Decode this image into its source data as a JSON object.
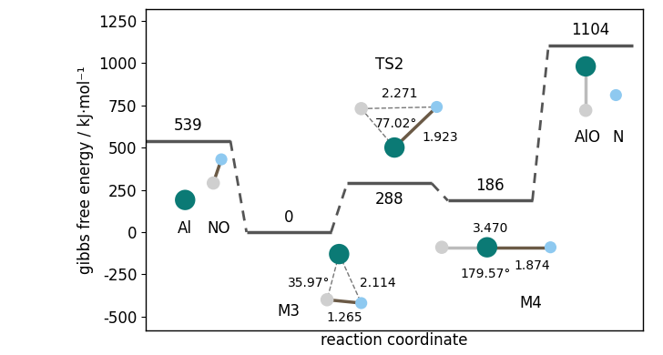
{
  "chart_data": {
    "type": "energy_profile",
    "ylabel": "gibbs free energy / kJ·mol⁻¹",
    "xlabel": "reaction coordinate",
    "ylim": [
      -580,
      1320
    ],
    "yticks": [
      -500,
      -250,
      0,
      250,
      500,
      750,
      1000,
      1250
    ],
    "data_labels": true,
    "color": "#555555",
    "states": [
      {
        "labels": [
          "Al",
          "NO"
        ],
        "value": 539,
        "geometry": []
      },
      {
        "labels": [
          "M3"
        ],
        "value": 0,
        "geometry": [
          "35.97°",
          "2.114",
          "1.265"
        ]
      },
      {
        "labels": [
          "TS2"
        ],
        "value": 288,
        "geometry": [
          "2.271",
          "77.02°",
          "1.923"
        ]
      },
      {
        "labels": [
          "M4"
        ],
        "value": 186,
        "geometry": [
          "3.470",
          "179.57°",
          "1.874"
        ]
      },
      {
        "labels": [
          "AlO",
          "N"
        ],
        "value": 1104,
        "geometry": []
      }
    ]
  }
}
